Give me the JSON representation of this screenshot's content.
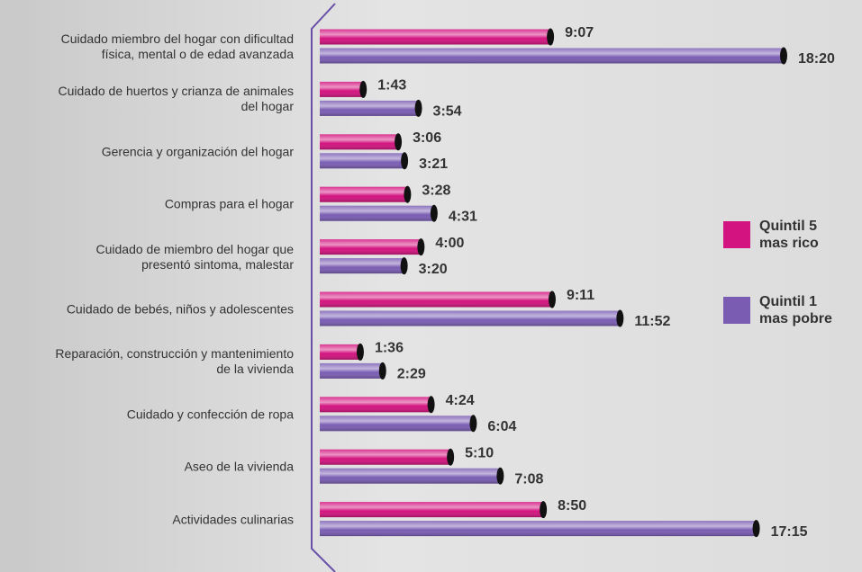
{
  "chart_data": {
    "type": "bar",
    "orientation": "horizontal",
    "categories": [
      "Cuidado miembro del hogar con dificultad\nfísica, mental o de edad avanzada",
      "Cuidado de huertos y crianza de animales\ndel hogar",
      "Gerencia y organización del hogar",
      "Compras para el hogar",
      "Cuidado de miembro del hogar que\npresentó sintoma, malestar",
      "Cuidado de bebés, niños y adolescentes",
      "Reparación, construcción y mantenimiento\nde la vivienda",
      "Cuidado y confección de ropa",
      "Aseo de la vivienda",
      "Actividades culinarias"
    ],
    "series": [
      {
        "name": "Quintil 5\nmas rico",
        "color": "#d3137f",
        "values": [
          547,
          103,
          186,
          208,
          240,
          551,
          96,
          264,
          310,
          530
        ],
        "value_labels": [
          "9:07",
          "1:43",
          "3:06",
          "3:28",
          "4:00",
          "9:11",
          "1:36",
          "4:24",
          "5:10",
          "8:50"
        ]
      },
      {
        "name": "Quintil 1\nmas pobre",
        "color": "#7a5db3",
        "values": [
          1100,
          234,
          201,
          271,
          200,
          712,
          149,
          364,
          428,
          1035
        ],
        "value_labels": [
          "18:20",
          "3:54",
          "3:21",
          "4:31",
          "3:20",
          "11:52",
          "2:29",
          "6:04",
          "7:08",
          "17:15"
        ]
      }
    ]
  }
}
